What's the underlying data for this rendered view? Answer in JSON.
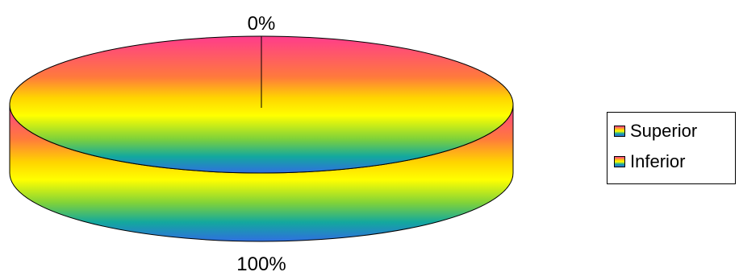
{
  "chart_data": {
    "type": "pie",
    "style": "3d-cylinder",
    "categories": [
      "Superior",
      "Inferior"
    ],
    "values": [
      0,
      100
    ],
    "data_labels": [
      "0%",
      "100%"
    ],
    "legend": {
      "position": "right",
      "entries": [
        "Superior",
        "Inferior"
      ]
    },
    "title": "",
    "colors": {
      "gradient": [
        "#ff3c8c",
        "#ff7a3c",
        "#ffd400",
        "#ffff00",
        "#7fd23a",
        "#13a89e",
        "#2f6fe0"
      ],
      "outline": "#000000"
    }
  }
}
